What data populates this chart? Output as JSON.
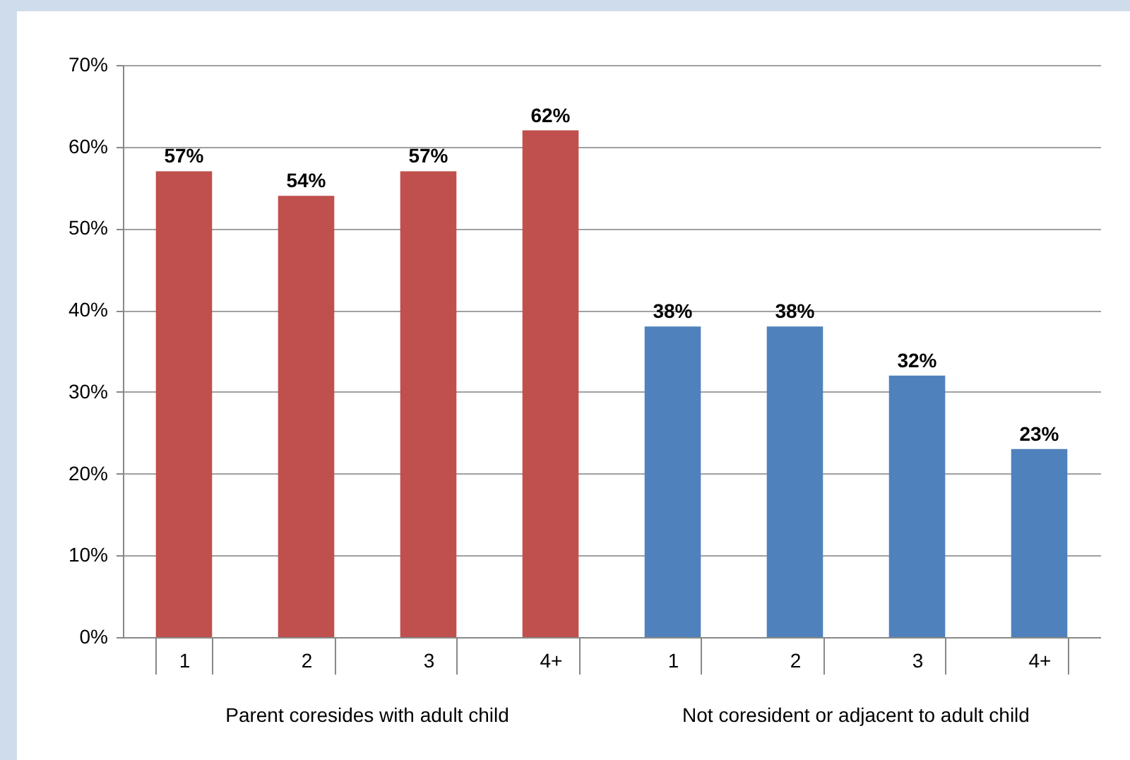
{
  "chart_data": {
    "type": "bar",
    "categories": [
      "1",
      "2",
      "3",
      "4+",
      "1",
      "2",
      "3",
      "4+"
    ],
    "series": [
      {
        "color": "#c0504d",
        "values": [
          57,
          54,
          57,
          62,
          null,
          null,
          null,
          null
        ],
        "value_labels": [
          "57%",
          "54%",
          "57%",
          "62%",
          null,
          null,
          null,
          null
        ]
      },
      {
        "color": "#4f81bd",
        "values": [
          null,
          null,
          null,
          null,
          38,
          38,
          32,
          23
        ],
        "value_labels": [
          null,
          null,
          null,
          null,
          "38%",
          "38%",
          "32%",
          "23%"
        ]
      }
    ],
    "ylim": [
      0,
      70
    ],
    "yticks": [
      {
        "value": 0,
        "label": "0%"
      },
      {
        "value": 10,
        "label": "10%"
      },
      {
        "value": 20,
        "label": "20%"
      },
      {
        "value": 30,
        "label": "30%"
      },
      {
        "value": 40,
        "label": "40%"
      },
      {
        "value": 50,
        "label": "50%"
      },
      {
        "value": 60,
        "label": "60%"
      },
      {
        "value": 70,
        "label": "70%"
      }
    ],
    "annotations": [
      "Parent coresides with adult child",
      "Not coresident or adjacent to adult child"
    ],
    "grid": "y",
    "legend": false
  }
}
